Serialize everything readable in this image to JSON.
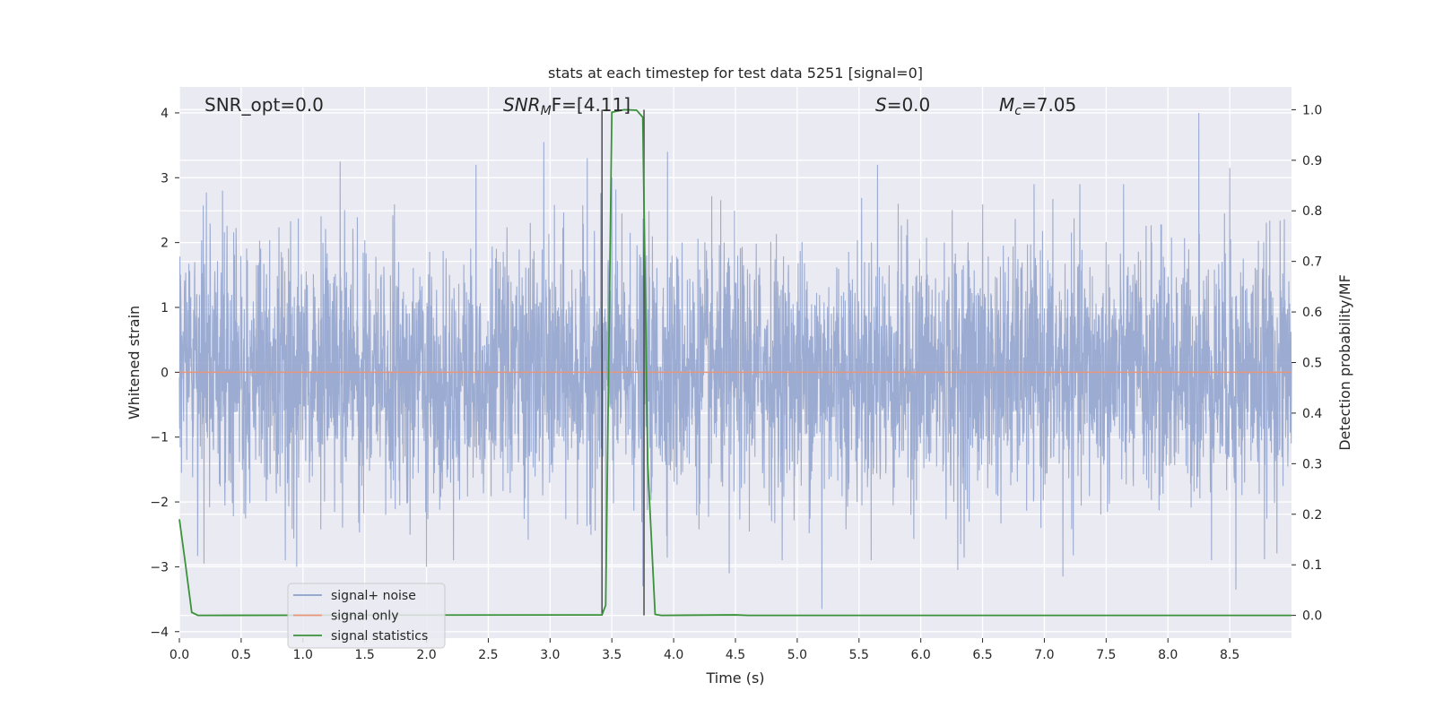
{
  "chart_data": {
    "type": "line",
    "title": "stats at each timestep for test data 5251 [signal=0]",
    "xlabel": "Time (s)",
    "ylabel": "Whitened strain",
    "y2label": "Detection probability/MF",
    "xlim": [
      0.0,
      9.0
    ],
    "ylim": [
      -4.1,
      4.4
    ],
    "y2lim": [
      -0.045,
      1.045
    ],
    "x_ticks": [
      "0.0",
      "0.5",
      "1.0",
      "1.5",
      "2.0",
      "2.5",
      "3.0",
      "3.5",
      "4.0",
      "4.5",
      "5.0",
      "5.5",
      "6.0",
      "6.5",
      "7.0",
      "7.5",
      "8.0",
      "8.5"
    ],
    "y_ticks": [
      "4",
      "3",
      "2",
      "1",
      "0",
      "−1",
      "−2",
      "−3",
      "−4"
    ],
    "y2_ticks": [
      "1.0",
      "0.9",
      "0.8",
      "0.7",
      "0.6",
      "0.5",
      "0.4",
      "0.3",
      "0.2",
      "0.1",
      "0.0"
    ],
    "grid": true,
    "legend": {
      "position": "lower-left",
      "entries": [
        {
          "name": "signal+ noise",
          "color": "#8da0cb"
        },
        {
          "name": "signal only",
          "color": "#e8967a"
        },
        {
          "name": "signal statistics",
          "color": "#3a923a"
        }
      ]
    },
    "annotations": {
      "snr_opt": "SNR_opt=0.0",
      "snr_mf_main": "SNR",
      "snr_mf_sub": "M",
      "snr_mf_rest": "F=[4.11]",
      "s_main": "S",
      "s_rest": "=0.0",
      "mc_main": "M",
      "mc_sub": "c",
      "mc_rest": "=7.05"
    },
    "series": [
      {
        "name": "signal+ noise",
        "axis": "left",
        "style": "dense-noise",
        "x_range": [
          0.0,
          9.0
        ],
        "envelope_peaks_upper": [
          [
            0.35,
            2.8
          ],
          [
            1.3,
            3.25
          ],
          [
            2.4,
            3.2
          ],
          [
            2.95,
            3.55
          ],
          [
            3.3,
            3.3
          ],
          [
            3.5,
            3.0
          ],
          [
            3.95,
            3.4
          ],
          [
            5.65,
            3.2
          ],
          [
            8.25,
            4.0
          ],
          [
            8.5,
            3.15
          ]
        ],
        "envelope_peaks_lower": [
          [
            0.2,
            -2.95
          ],
          [
            0.95,
            -3.0
          ],
          [
            2.0,
            -3.0
          ],
          [
            3.45,
            -3.2
          ],
          [
            3.75,
            -3.3
          ],
          [
            4.45,
            -3.1
          ],
          [
            5.2,
            -3.65
          ],
          [
            6.3,
            -3.05
          ],
          [
            7.15,
            -3.15
          ],
          [
            8.55,
            -3.35
          ]
        ]
      },
      {
        "name": "signal only",
        "axis": "left",
        "x": [
          0.0,
          9.0
        ],
        "y": [
          0.0,
          0.0
        ]
      },
      {
        "name": "signal statistics",
        "axis": "right",
        "x": [
          0.0,
          0.05,
          0.1,
          0.15,
          3.42,
          3.45,
          3.5,
          3.6,
          3.7,
          3.75,
          3.79,
          3.85,
          3.9,
          4.5,
          4.6,
          9.0
        ],
        "y": [
          0.19,
          0.1,
          0.006,
          0.0,
          0.001,
          0.02,
          0.995,
          1.0,
          0.999,
          0.985,
          0.3,
          0.002,
          0.0,
          0.001,
          0.0,
          0.0
        ]
      },
      {
        "name": "mf-vertical-markers",
        "axis": "right",
        "x": [
          3.42,
          3.76
        ],
        "y_top": [
          1.0,
          1.0
        ]
      }
    ]
  }
}
